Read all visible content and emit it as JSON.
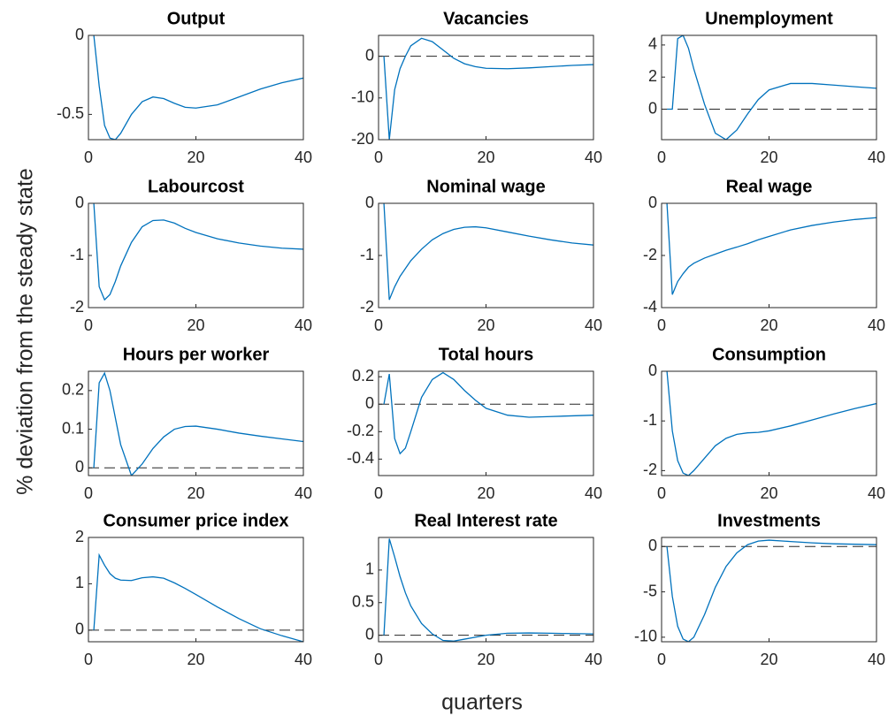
{
  "ylabel": "% deviation from the steady state",
  "xlabel": "quarters",
  "chart_data": [
    {
      "type": "line",
      "title": "Output",
      "x": [
        1,
        2,
        3,
        4,
        5,
        6,
        8,
        10,
        12,
        14,
        16,
        18,
        20,
        24,
        28,
        32,
        36,
        40
      ],
      "series": [
        {
          "color": "#0072bd",
          "values": [
            0,
            -0.32,
            -0.57,
            -0.65,
            -0.66,
            -0.62,
            -0.5,
            -0.42,
            -0.39,
            -0.4,
            -0.43,
            -0.455,
            -0.46,
            -0.44,
            -0.39,
            -0.34,
            -0.3,
            -0.27
          ]
        }
      ],
      "xlim": [
        0,
        40
      ],
      "xticks": [
        0,
        20,
        40
      ],
      "ylim": [
        -0.66,
        0
      ],
      "yticks": [
        -0.5,
        0
      ],
      "zero_line": false
    },
    {
      "type": "line",
      "title": "Vacancies",
      "x": [
        1,
        2,
        3,
        4,
        5,
        6,
        8,
        10,
        12,
        14,
        16,
        18,
        20,
        24,
        28,
        32,
        36,
        40
      ],
      "series": [
        {
          "color": "#0072bd",
          "values": [
            0,
            -20,
            -8,
            -3,
            0,
            2.5,
            4.3,
            3.5,
            1.5,
            -0.5,
            -1.8,
            -2.5,
            -2.9,
            -3,
            -2.8,
            -2.5,
            -2.2,
            -2
          ]
        }
      ],
      "xlim": [
        0,
        40
      ],
      "xticks": [
        0,
        20,
        40
      ],
      "ylim": [
        -20,
        5
      ],
      "yticks": [
        -20,
        -10,
        0
      ],
      "zero_line": true
    },
    {
      "type": "line",
      "title": "Unemployment",
      "x": [
        1,
        2,
        3,
        4,
        5,
        6,
        8,
        10,
        12,
        14,
        16,
        18,
        20,
        24,
        28,
        32,
        36,
        40
      ],
      "series": [
        {
          "color": "#0072bd",
          "values": [
            0,
            0,
            4.4,
            4.6,
            3.8,
            2.5,
            0.3,
            -1.5,
            -1.9,
            -1.3,
            -0.3,
            0.6,
            1.2,
            1.6,
            1.6,
            1.5,
            1.4,
            1.3
          ]
        }
      ],
      "xlim": [
        0,
        40
      ],
      "xticks": [
        0,
        20,
        40
      ],
      "ylim": [
        -1.9,
        4.6
      ],
      "yticks": [
        0,
        2,
        4
      ],
      "zero_line": true
    },
    {
      "type": "line",
      "title": "Labourcost",
      "x": [
        1,
        2,
        3,
        4,
        5,
        6,
        8,
        10,
        12,
        14,
        16,
        18,
        20,
        24,
        28,
        32,
        36,
        40
      ],
      "series": [
        {
          "color": "#0072bd",
          "values": [
            0,
            -1.6,
            -1.85,
            -1.75,
            -1.5,
            -1.2,
            -0.75,
            -0.45,
            -0.33,
            -0.32,
            -0.38,
            -0.48,
            -0.56,
            -0.68,
            -0.76,
            -0.82,
            -0.86,
            -0.88
          ]
        }
      ],
      "xlim": [
        0,
        40
      ],
      "xticks": [
        0,
        20,
        40
      ],
      "ylim": [
        -2,
        0
      ],
      "yticks": [
        -2,
        -1,
        0
      ],
      "zero_line": false
    },
    {
      "type": "line",
      "title": "Nominal wage",
      "x": [
        1,
        2,
        3,
        4,
        5,
        6,
        8,
        10,
        12,
        14,
        16,
        18,
        20,
        24,
        28,
        32,
        36,
        40
      ],
      "series": [
        {
          "color": "#0072bd",
          "values": [
            0,
            -1.85,
            -1.6,
            -1.4,
            -1.25,
            -1.1,
            -0.88,
            -0.7,
            -0.58,
            -0.5,
            -0.46,
            -0.45,
            -0.47,
            -0.55,
            -0.63,
            -0.7,
            -0.76,
            -0.8
          ]
        }
      ],
      "xlim": [
        0,
        40
      ],
      "xticks": [
        0,
        20,
        40
      ],
      "ylim": [
        -2,
        0
      ],
      "yticks": [
        -2,
        -1,
        0
      ],
      "zero_line": false
    },
    {
      "type": "line",
      "title": "Real wage",
      "x": [
        1,
        2,
        3,
        4,
        5,
        6,
        8,
        10,
        12,
        14,
        16,
        18,
        20,
        24,
        28,
        32,
        36,
        40
      ],
      "series": [
        {
          "color": "#0072bd",
          "values": [
            0,
            -3.5,
            -3,
            -2.7,
            -2.45,
            -2.3,
            -2.1,
            -1.95,
            -1.8,
            -1.68,
            -1.55,
            -1.4,
            -1.27,
            -1.02,
            -0.85,
            -0.72,
            -0.62,
            -0.55
          ]
        }
      ],
      "xlim": [
        0,
        40
      ],
      "xticks": [
        0,
        20,
        40
      ],
      "ylim": [
        -4,
        0
      ],
      "yticks": [
        -4,
        -2,
        0
      ],
      "zero_line": false
    },
    {
      "type": "line",
      "title": "Hours per worker",
      "x": [
        1,
        2,
        3,
        4,
        5,
        6,
        8,
        10,
        12,
        14,
        16,
        18,
        20,
        24,
        28,
        32,
        36,
        40
      ],
      "series": [
        {
          "color": "#0072bd",
          "values": [
            0,
            0.22,
            0.245,
            0.2,
            0.13,
            0.06,
            -0.02,
            0.01,
            0.05,
            0.08,
            0.1,
            0.107,
            0.108,
            0.1,
            0.09,
            0.082,
            0.075,
            0.068
          ]
        }
      ],
      "xlim": [
        0,
        40
      ],
      "xticks": [
        0,
        20,
        40
      ],
      "ylim": [
        -0.02,
        0.25
      ],
      "yticks": [
        0,
        0.1,
        0.2
      ],
      "zero_line": true
    },
    {
      "type": "line",
      "title": "Total hours",
      "x": [
        1,
        2,
        3,
        4,
        5,
        6,
        8,
        10,
        12,
        14,
        16,
        18,
        20,
        24,
        28,
        32,
        36,
        40
      ],
      "series": [
        {
          "color": "#0072bd",
          "values": [
            0,
            0.22,
            -0.25,
            -0.36,
            -0.32,
            -0.2,
            0.05,
            0.18,
            0.23,
            0.18,
            0.1,
            0.03,
            -0.03,
            -0.08,
            -0.095,
            -0.09,
            -0.085,
            -0.08
          ]
        }
      ],
      "xlim": [
        0,
        40
      ],
      "xticks": [
        0,
        20,
        40
      ],
      "ylim": [
        -0.52,
        0.24
      ],
      "yticks": [
        -0.4,
        -0.2,
        0,
        0.2
      ],
      "zero_line": true
    },
    {
      "type": "line",
      "title": "Consumption",
      "x": [
        1,
        2,
        3,
        4,
        5,
        6,
        8,
        10,
        12,
        14,
        16,
        18,
        20,
        24,
        28,
        32,
        36,
        40
      ],
      "series": [
        {
          "color": "#0072bd",
          "values": [
            0,
            -1.2,
            -1.8,
            -2.05,
            -2.1,
            -2,
            -1.75,
            -1.5,
            -1.35,
            -1.27,
            -1.24,
            -1.23,
            -1.2,
            -1.1,
            -0.98,
            -0.86,
            -0.75,
            -0.65
          ]
        }
      ],
      "xlim": [
        0,
        40
      ],
      "xticks": [
        0,
        20,
        40
      ],
      "ylim": [
        -2.1,
        0
      ],
      "yticks": [
        -2,
        -1,
        0
      ],
      "zero_line": false
    },
    {
      "type": "line",
      "title": "Consumer price index",
      "x": [
        1,
        2,
        3,
        4,
        5,
        6,
        8,
        10,
        12,
        14,
        16,
        18,
        20,
        24,
        28,
        32,
        36,
        40
      ],
      "series": [
        {
          "color": "#0072bd",
          "values": [
            0,
            1.62,
            1.4,
            1.22,
            1.12,
            1.08,
            1.07,
            1.13,
            1.15,
            1.12,
            1.02,
            0.9,
            0.77,
            0.5,
            0.25,
            0.03,
            -0.12,
            -0.25
          ]
        }
      ],
      "xlim": [
        0,
        40
      ],
      "xticks": [
        0,
        20,
        40
      ],
      "ylim": [
        -0.25,
        2
      ],
      "yticks": [
        0,
        1,
        2
      ],
      "zero_line": true
    },
    {
      "type": "line",
      "title": "Real Interest rate",
      "x": [
        1,
        2,
        3,
        4,
        5,
        6,
        8,
        10,
        12,
        14,
        16,
        18,
        20,
        24,
        28,
        32,
        36,
        40
      ],
      "series": [
        {
          "color": "#0072bd",
          "values": [
            0,
            1.48,
            1.2,
            0.9,
            0.65,
            0.45,
            0.18,
            0.02,
            -0.08,
            -0.09,
            -0.06,
            -0.03,
            0,
            0.03,
            0.035,
            0.03,
            0.025,
            0.02
          ]
        }
      ],
      "xlim": [
        0,
        40
      ],
      "xticks": [
        0,
        20,
        40
      ],
      "ylim": [
        -0.1,
        1.5
      ],
      "yticks": [
        0,
        0.5,
        1
      ],
      "zero_line": true
    },
    {
      "type": "line",
      "title": "Investments",
      "x": [
        1,
        2,
        3,
        4,
        5,
        6,
        8,
        10,
        12,
        14,
        16,
        18,
        20,
        24,
        28,
        32,
        36,
        40
      ],
      "series": [
        {
          "color": "#0072bd",
          "values": [
            0,
            -5.5,
            -8.8,
            -10.2,
            -10.5,
            -10,
            -7.5,
            -4.5,
            -2.2,
            -0.7,
            0.2,
            0.6,
            0.7,
            0.55,
            0.4,
            0.3,
            0.25,
            0.2
          ]
        }
      ],
      "xlim": [
        0,
        40
      ],
      "xticks": [
        0,
        20,
        40
      ],
      "ylim": [
        -10.5,
        1
      ],
      "yticks": [
        -10,
        -5,
        0
      ],
      "zero_line": true
    }
  ]
}
